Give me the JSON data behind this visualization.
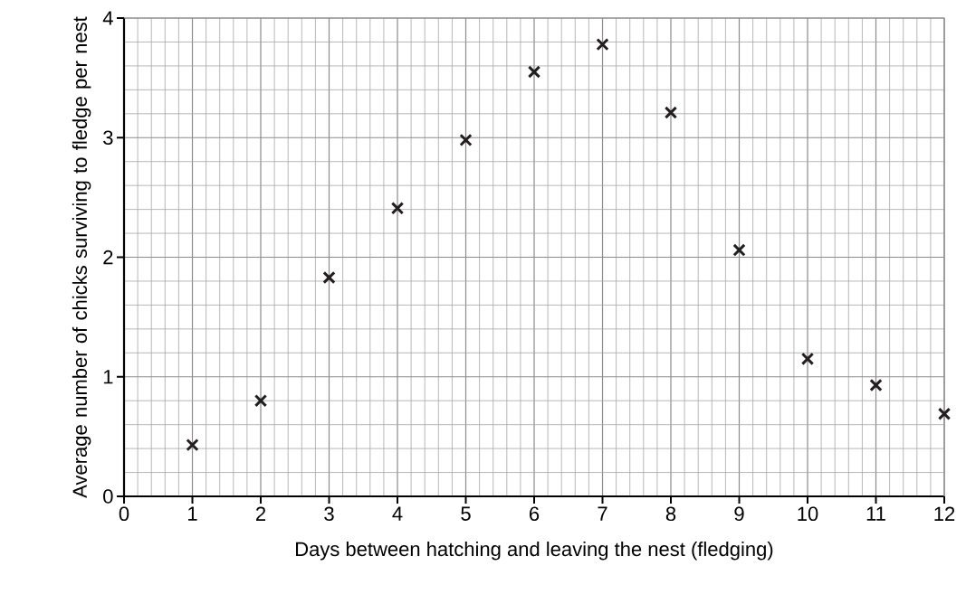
{
  "chart_data": {
    "type": "scatter",
    "xlabel": "Days between hatching and leaving the nest (fledging)",
    "ylabel": "Average number of chicks surviving to fledge per nest",
    "x": [
      1,
      2,
      3,
      4,
      5,
      6,
      7,
      8,
      9,
      10,
      11,
      12
    ],
    "series": [
      {
        "color": "#231f20",
        "values": [
          0.43,
          0.8,
          1.83,
          2.41,
          2.98,
          3.55,
          3.78,
          3.21,
          2.06,
          1.15,
          0.93,
          0.69
        ]
      }
    ],
    "xlim": [
      0,
      12
    ],
    "ylim": [
      0,
      4
    ],
    "xticks": [
      0,
      1,
      2,
      3,
      4,
      5,
      6,
      7,
      8,
      9,
      10,
      11,
      12
    ],
    "yticks": [
      0,
      1,
      2,
      3,
      4
    ],
    "grid": true,
    "marker": "cross"
  }
}
